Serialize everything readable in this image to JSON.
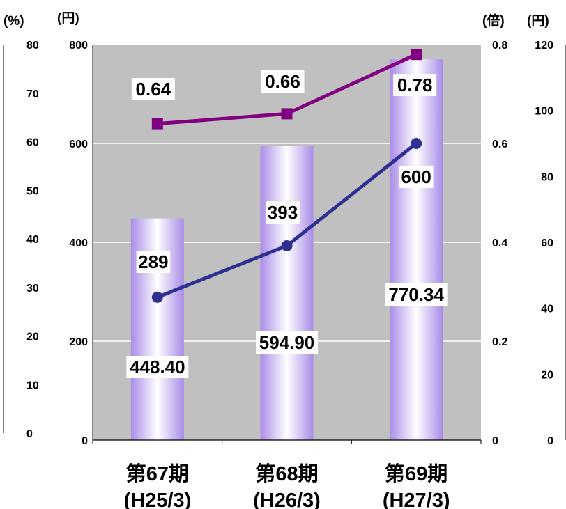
{
  "chart_data": {
    "type": "bar",
    "units": {
      "far_left": "(%)",
      "left": "(円)",
      "right": "(倍)",
      "far_right": "(円)"
    },
    "categories": [
      [
        "第67期",
        "(H25/3)"
      ],
      [
        "第68期",
        "(H26/3)"
      ],
      [
        "第69期",
        "(H27/3)"
      ]
    ],
    "axes": {
      "far_left": {
        "ticks": [
          "80",
          "70",
          "60",
          "50",
          "40",
          "30",
          "20",
          "10",
          "0"
        ],
        "range": [
          0,
          80
        ]
      },
      "left": {
        "ticks": [
          "800",
          "600",
          "400",
          "200",
          "0"
        ],
        "range": [
          0,
          800
        ]
      },
      "right": {
        "ticks": [
          "0.8",
          "0.6",
          "0.4",
          "0.2",
          "0"
        ],
        "range": [
          0,
          0.8
        ]
      },
      "far_right": {
        "ticks": [
          "120",
          "100",
          "80",
          "60",
          "40",
          "20",
          "0"
        ],
        "range": [
          0,
          120
        ]
      }
    },
    "bars": {
      "axis": "left",
      "values": [
        448.4,
        594.9,
        770.34
      ],
      "labels": [
        "448.40",
        "594.90",
        "770.34"
      ],
      "color": "#a98ce8"
    },
    "lines": [
      {
        "axis": "left",
        "marker": "circle",
        "color": "#2e3192",
        "values": [
          289,
          393,
          600
        ],
        "labels": [
          "289",
          "393",
          "600"
        ]
      },
      {
        "axis": "right",
        "marker": "square",
        "color": "#800080",
        "values": [
          0.64,
          0.66,
          0.78
        ],
        "labels": [
          "0.64",
          "0.66",
          "0.78"
        ]
      }
    ],
    "grid": true,
    "plot_background": "#c0c0c0"
  }
}
